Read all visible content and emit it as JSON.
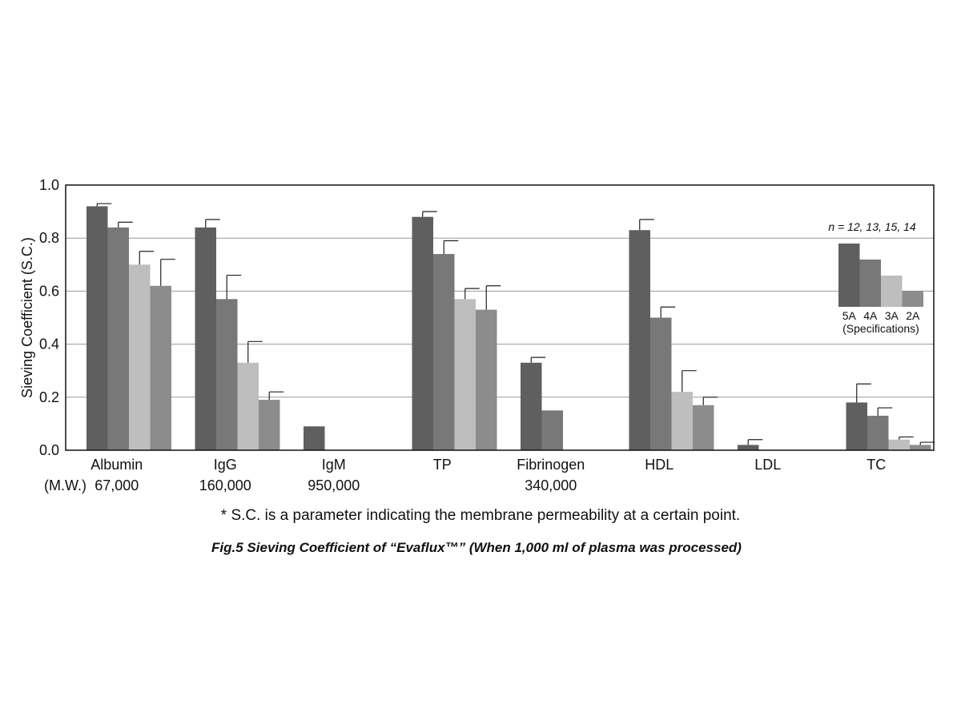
{
  "chart_data": {
    "type": "bar",
    "ylabel": "Sieving Coefficient (S.C.)",
    "ylim": [
      0,
      1.0
    ],
    "yticks": [
      "0.0",
      "0.2",
      "0.4",
      "0.6",
      "0.8",
      "1.0"
    ],
    "grid": "horizontal",
    "categories": [
      "Albumin",
      "IgG",
      "IgM",
      "TP",
      "Fibrinogen",
      "HDL",
      "LDL",
      "TC"
    ],
    "mw_label": "(M.W.)",
    "molecular_weights": [
      "67,000",
      "160,000",
      "950,000",
      "",
      "340,000",
      "",
      "",
      ""
    ],
    "series": [
      {
        "name": "5A",
        "color": "#5f5f5f",
        "values": [
          0.92,
          0.84,
          0.09,
          0.88,
          0.33,
          0.83,
          0.02,
          0.18
        ],
        "errors": [
          0.01,
          0.03,
          null,
          0.02,
          0.02,
          0.04,
          0.02,
          0.07
        ]
      },
      {
        "name": "4A",
        "color": "#787878",
        "values": [
          0.84,
          0.57,
          0,
          0.74,
          0.15,
          0.5,
          0,
          0.13
        ],
        "errors": [
          0.02,
          0.09,
          null,
          0.05,
          null,
          0.04,
          null,
          0.03
        ]
      },
      {
        "name": "3A",
        "color": "#bebebe",
        "values": [
          0.7,
          0.33,
          0,
          0.57,
          0,
          0.22,
          0,
          0.04
        ],
        "errors": [
          0.05,
          0.08,
          null,
          0.04,
          null,
          0.08,
          null,
          0.01
        ]
      },
      {
        "name": "2A",
        "color": "#8c8c8c",
        "values": [
          0.62,
          0.19,
          0,
          0.53,
          0,
          0.17,
          0,
          0.02
        ],
        "errors": [
          0.1,
          0.03,
          null,
          0.09,
          null,
          0.03,
          null,
          0.01
        ]
      }
    ],
    "legend": {
      "position": "top-right",
      "n_text": "n = 12, 13, 15, 14",
      "subtitle": "(Specifications)"
    }
  },
  "footnote": "* S.C. is a parameter indicating the membrane permeability at a certain point.",
  "caption": "Fig.5  Sieving Coefficient of “Evaflux™”  (When 1,000 ml of plasma was processed)"
}
